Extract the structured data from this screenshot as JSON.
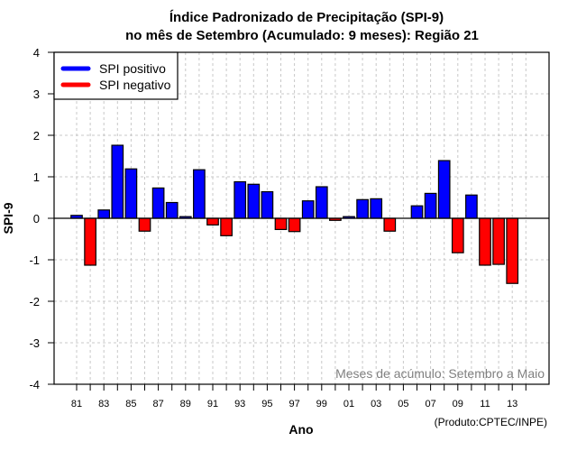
{
  "chart_data": {
    "type": "bar",
    "title": "Índice Padronizado de Precipitação (SPI-9)",
    "subtitle": "no mês de Setembro (Acumulado: 9 meses): Região 21",
    "xlabel": "Ano",
    "ylabel": "SPI-9",
    "ylim": [
      -4,
      4
    ],
    "yticks": [
      -4,
      -3,
      -2,
      -1,
      0,
      1,
      2,
      3,
      4
    ],
    "xtick_labels": [
      "81",
      "83",
      "85",
      "87",
      "89",
      "91",
      "93",
      "95",
      "97",
      "99",
      "01",
      "03",
      "05",
      "07",
      "09",
      "11",
      "13"
    ],
    "grid": true,
    "categories": [
      "81",
      "82",
      "83",
      "84",
      "85",
      "86",
      "87",
      "88",
      "89",
      "90",
      "91",
      "92",
      "93",
      "94",
      "95",
      "96",
      "97",
      "98",
      "99",
      "00",
      "01",
      "02",
      "03",
      "04",
      "05",
      "06",
      "07",
      "08",
      "09",
      "10",
      "11",
      "12",
      "13"
    ],
    "values": [
      0.07,
      -1.13,
      0.2,
      1.76,
      1.19,
      -0.31,
      0.73,
      0.38,
      0.04,
      1.17,
      -0.16,
      -0.42,
      0.88,
      0.82,
      0.64,
      -0.27,
      -0.32,
      0.42,
      0.76,
      -0.05,
      0.04,
      0.45,
      0.47,
      -0.31,
      0.0,
      0.3,
      0.6,
      1.39,
      -0.83,
      0.56,
      -1.13,
      -1.11,
      -1.57
    ],
    "legend": {
      "placement": "top-left",
      "entries": [
        {
          "label": "SPI positivo",
          "color": "#0000ff"
        },
        {
          "label": "SPI negativo",
          "color": "#ff0000"
        }
      ]
    },
    "annotation": "Meses de acúmulo: Setembro a Maio",
    "credit": "(Produto:CPTEC/INPE)",
    "colors": {
      "positive": "#0000ff",
      "negative": "#ff0000",
      "grid": "#c8c8c8",
      "annotation": "#808080"
    }
  }
}
